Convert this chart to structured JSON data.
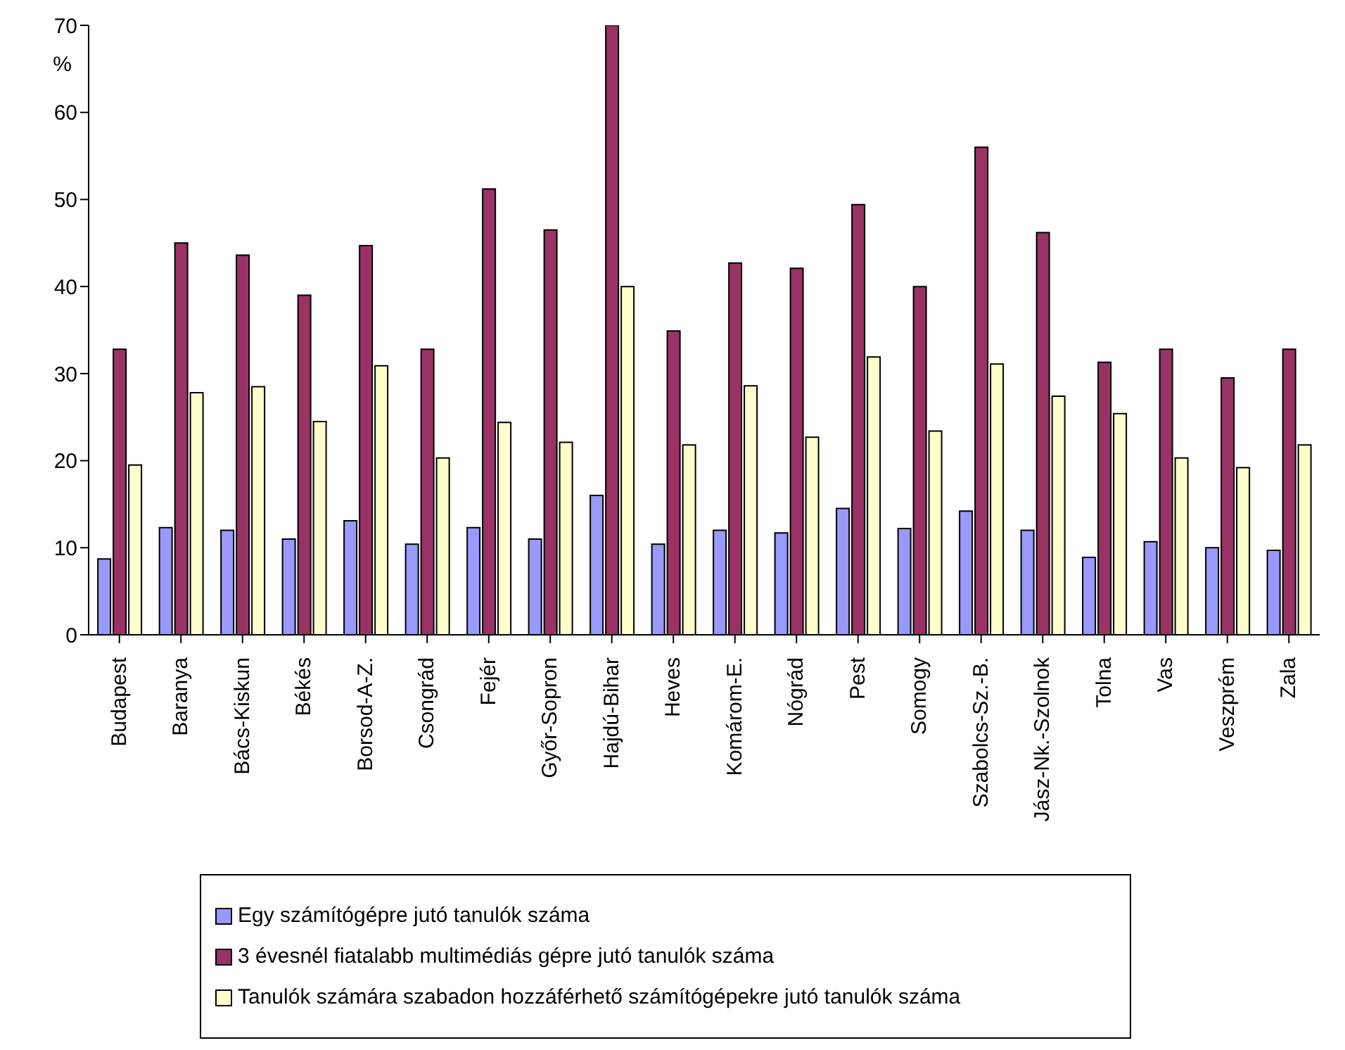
{
  "chart_data": {
    "type": "bar",
    "ylabel": "%",
    "categories": [
      "Budapest",
      "Baranya",
      "Bács-Kiskun",
      "Békés",
      "Borsod-A-Z.",
      "Csongrád",
      "Fejér",
      "Győr-Sopron",
      "Hajdú-Bihar",
      "Heves",
      "Komárom-E.",
      "Nógrád",
      "Pest",
      "Somogy",
      "Szabolcs-Sz.-B.",
      "Jász-Nk.-Szolnok",
      "Tolna",
      "Vas",
      "Veszprém",
      "Zala"
    ],
    "series": [
      {
        "name": "Egy számítógépre jutó tanulók száma",
        "color": "#9999ff",
        "values": [
          8.7,
          12.3,
          12,
          11,
          13.1,
          10.4,
          12.3,
          11,
          16,
          10.4,
          12,
          11.7,
          14.5,
          12.2,
          14.2,
          12,
          8.9,
          10.7,
          10,
          9.7
        ]
      },
      {
        "name": "3 évesnél fiatalabb multimédiás gépre jutó tanulók száma",
        "color": "#993366",
        "values": [
          32.8,
          45,
          43.6,
          39,
          44.7,
          32.8,
          51.2,
          46.5,
          70,
          34.9,
          42.7,
          42.1,
          49.4,
          40,
          56,
          46.2,
          31.3,
          32.8,
          29.5,
          32.8
        ]
      },
      {
        "name": "Tanulók számára szabadon hozzáférhető számítógépekre jutó tanulók száma",
        "color": "#ffffcc",
        "values": [
          19.5,
          27.8,
          28.5,
          24.5,
          30.9,
          20.3,
          24.4,
          22.1,
          40,
          21.8,
          28.6,
          22.7,
          31.9,
          23.4,
          31.1,
          27.4,
          25.4,
          20.3,
          19.2,
          21.8
        ]
      }
    ],
    "ylim": [
      0,
      70
    ],
    "yticks": [
      0,
      10,
      20,
      30,
      40,
      50,
      60,
      70
    ],
    "legend": "bottom"
  }
}
